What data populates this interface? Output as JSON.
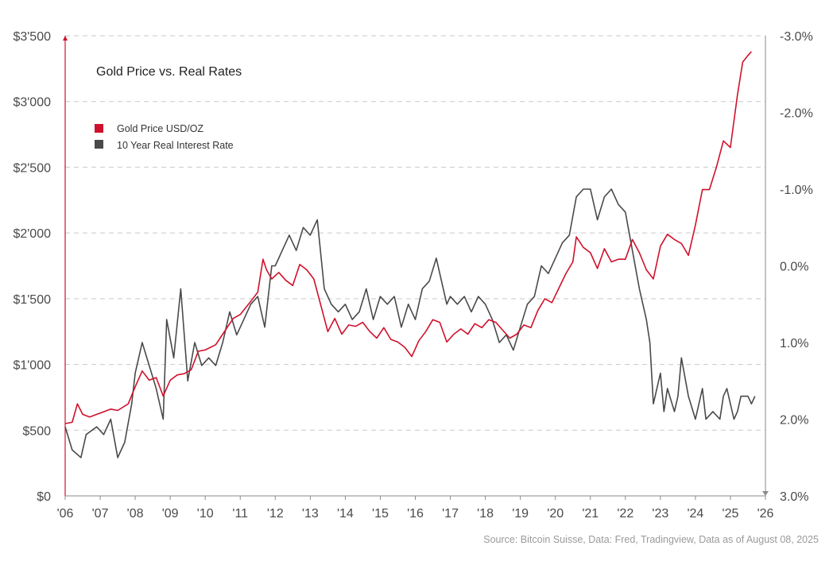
{
  "chart_data": {
    "type": "line",
    "title": "Gold Price vs. Real Rates",
    "source": "Source: Bitcoin Suisse, Data: Fred, Tradingview, Data as of August 08, 2025",
    "x_ticks": [
      "'06",
      "'07",
      "'08",
      "'09",
      "'10",
      "'11",
      "'12",
      "'13",
      "'14",
      "'15",
      "'16",
      "'17",
      "'18",
      "'19",
      "'20",
      "'21",
      "'22",
      "'23",
      "'24",
      "'25",
      "'26"
    ],
    "x_range": [
      2006,
      2026
    ],
    "left_axis": {
      "ticks": [
        "$0",
        "$500",
        "$1'000",
        "$1'500",
        "$2'000",
        "$2'500",
        "$3'000",
        "$3'500"
      ],
      "values": [
        0,
        500,
        1000,
        1500,
        2000,
        2500,
        3000,
        3500
      ],
      "range": [
        0,
        3500
      ]
    },
    "right_axis": {
      "ticks": [
        "-3.0%",
        "-2.0%",
        "-1.0%",
        "0.0%",
        "1.0%",
        "2.0%",
        "3.0%"
      ],
      "values": [
        -3,
        -2,
        -1,
        0,
        1,
        2,
        3
      ],
      "range": [
        -3,
        3
      ],
      "inverted": true
    },
    "grid": true,
    "legend_position": "top-left",
    "series": [
      {
        "name": "Gold Price USD/OZ",
        "color": "#d0112b",
        "axis": "left",
        "points": [
          [
            2006.0,
            550
          ],
          [
            2006.2,
            560
          ],
          [
            2006.35,
            700
          ],
          [
            2006.5,
            620
          ],
          [
            2006.7,
            600
          ],
          [
            2007.0,
            630
          ],
          [
            2007.3,
            660
          ],
          [
            2007.5,
            650
          ],
          [
            2007.8,
            700
          ],
          [
            2008.0,
            830
          ],
          [
            2008.2,
            950
          ],
          [
            2008.4,
            880
          ],
          [
            2008.6,
            900
          ],
          [
            2008.8,
            760
          ],
          [
            2009.0,
            880
          ],
          [
            2009.2,
            920
          ],
          [
            2009.4,
            930
          ],
          [
            2009.6,
            960
          ],
          [
            2009.8,
            1100
          ],
          [
            2010.0,
            1110
          ],
          [
            2010.3,
            1150
          ],
          [
            2010.5,
            1230
          ],
          [
            2010.8,
            1350
          ],
          [
            2011.0,
            1380
          ],
          [
            2011.3,
            1480
          ],
          [
            2011.5,
            1550
          ],
          [
            2011.65,
            1800
          ],
          [
            2011.75,
            1720
          ],
          [
            2011.9,
            1650
          ],
          [
            2012.1,
            1700
          ],
          [
            2012.3,
            1640
          ],
          [
            2012.5,
            1600
          ],
          [
            2012.7,
            1760
          ],
          [
            2012.9,
            1720
          ],
          [
            2013.1,
            1650
          ],
          [
            2013.3,
            1450
          ],
          [
            2013.5,
            1250
          ],
          [
            2013.7,
            1350
          ],
          [
            2013.9,
            1230
          ],
          [
            2014.1,
            1300
          ],
          [
            2014.3,
            1290
          ],
          [
            2014.5,
            1320
          ],
          [
            2014.7,
            1250
          ],
          [
            2014.9,
            1200
          ],
          [
            2015.1,
            1280
          ],
          [
            2015.3,
            1190
          ],
          [
            2015.5,
            1170
          ],
          [
            2015.7,
            1130
          ],
          [
            2015.9,
            1060
          ],
          [
            2016.1,
            1180
          ],
          [
            2016.3,
            1250
          ],
          [
            2016.5,
            1340
          ],
          [
            2016.7,
            1320
          ],
          [
            2016.9,
            1170
          ],
          [
            2017.1,
            1230
          ],
          [
            2017.3,
            1270
          ],
          [
            2017.5,
            1230
          ],
          [
            2017.7,
            1310
          ],
          [
            2017.9,
            1280
          ],
          [
            2018.1,
            1340
          ],
          [
            2018.3,
            1320
          ],
          [
            2018.5,
            1260
          ],
          [
            2018.7,
            1200
          ],
          [
            2018.9,
            1230
          ],
          [
            2019.1,
            1300
          ],
          [
            2019.3,
            1280
          ],
          [
            2019.5,
            1410
          ],
          [
            2019.7,
            1500
          ],
          [
            2019.9,
            1470
          ],
          [
            2020.1,
            1580
          ],
          [
            2020.3,
            1690
          ],
          [
            2020.5,
            1780
          ],
          [
            2020.6,
            1970
          ],
          [
            2020.8,
            1890
          ],
          [
            2021.0,
            1850
          ],
          [
            2021.2,
            1730
          ],
          [
            2021.4,
            1880
          ],
          [
            2021.6,
            1780
          ],
          [
            2021.8,
            1800
          ],
          [
            2022.0,
            1800
          ],
          [
            2022.2,
            1950
          ],
          [
            2022.4,
            1850
          ],
          [
            2022.6,
            1720
          ],
          [
            2022.8,
            1650
          ],
          [
            2023.0,
            1900
          ],
          [
            2023.2,
            1990
          ],
          [
            2023.4,
            1950
          ],
          [
            2023.6,
            1920
          ],
          [
            2023.8,
            1830
          ],
          [
            2024.0,
            2060
          ],
          [
            2024.2,
            2330
          ],
          [
            2024.4,
            2330
          ],
          [
            2024.6,
            2500
          ],
          [
            2024.8,
            2700
          ],
          [
            2025.0,
            2650
          ],
          [
            2025.2,
            3050
          ],
          [
            2025.35,
            3300
          ],
          [
            2025.5,
            3350
          ],
          [
            2025.6,
            3380
          ]
        ]
      },
      {
        "name": "10 Year Real Interest Rate",
        "color": "#4a4a4a",
        "axis": "right",
        "points": [
          [
            2006.0,
            2.1
          ],
          [
            2006.2,
            2.4
          ],
          [
            2006.45,
            2.5
          ],
          [
            2006.6,
            2.2
          ],
          [
            2006.9,
            2.1
          ],
          [
            2007.1,
            2.2
          ],
          [
            2007.3,
            2.0
          ],
          [
            2007.5,
            2.5
          ],
          [
            2007.7,
            2.3
          ],
          [
            2007.9,
            1.8
          ],
          [
            2008.0,
            1.4
          ],
          [
            2008.2,
            1.0
          ],
          [
            2008.4,
            1.3
          ],
          [
            2008.6,
            1.6
          ],
          [
            2008.8,
            2.0
          ],
          [
            2008.9,
            0.7
          ],
          [
            2009.1,
            1.2
          ],
          [
            2009.3,
            0.3
          ],
          [
            2009.5,
            1.5
          ],
          [
            2009.7,
            1.0
          ],
          [
            2009.9,
            1.3
          ],
          [
            2010.1,
            1.2
          ],
          [
            2010.3,
            1.3
          ],
          [
            2010.5,
            1.0
          ],
          [
            2010.7,
            0.6
          ],
          [
            2010.9,
            0.9
          ],
          [
            2011.1,
            0.7
          ],
          [
            2011.3,
            0.5
          ],
          [
            2011.5,
            0.4
          ],
          [
            2011.7,
            0.8
          ],
          [
            2011.9,
            0.0
          ],
          [
            2012.0,
            0.0
          ],
          [
            2012.2,
            -0.2
          ],
          [
            2012.4,
            -0.4
          ],
          [
            2012.6,
            -0.2
          ],
          [
            2012.8,
            -0.5
          ],
          [
            2013.0,
            -0.4
          ],
          [
            2013.2,
            -0.6
          ],
          [
            2013.4,
            0.3
          ],
          [
            2013.6,
            0.5
          ],
          [
            2013.8,
            0.6
          ],
          [
            2014.0,
            0.5
          ],
          [
            2014.2,
            0.7
          ],
          [
            2014.4,
            0.6
          ],
          [
            2014.6,
            0.3
          ],
          [
            2014.8,
            0.7
          ],
          [
            2015.0,
            0.4
          ],
          [
            2015.2,
            0.5
          ],
          [
            2015.4,
            0.4
          ],
          [
            2015.6,
            0.8
          ],
          [
            2015.8,
            0.5
          ],
          [
            2016.0,
            0.7
          ],
          [
            2016.2,
            0.3
          ],
          [
            2016.4,
            0.2
          ],
          [
            2016.6,
            -0.1
          ],
          [
            2016.9,
            0.5
          ],
          [
            2017.0,
            0.4
          ],
          [
            2017.2,
            0.5
          ],
          [
            2017.4,
            0.4
          ],
          [
            2017.6,
            0.6
          ],
          [
            2017.8,
            0.4
          ],
          [
            2018.0,
            0.5
          ],
          [
            2018.2,
            0.7
          ],
          [
            2018.4,
            1.0
          ],
          [
            2018.6,
            0.9
          ],
          [
            2018.8,
            1.1
          ],
          [
            2019.0,
            0.8
          ],
          [
            2019.2,
            0.5
          ],
          [
            2019.4,
            0.4
          ],
          [
            2019.6,
            0.0
          ],
          [
            2019.8,
            0.1
          ],
          [
            2020.0,
            -0.1
          ],
          [
            2020.2,
            -0.3
          ],
          [
            2020.4,
            -0.4
          ],
          [
            2020.6,
            -0.9
          ],
          [
            2020.8,
            -1.0
          ],
          [
            2021.0,
            -1.0
          ],
          [
            2021.2,
            -0.6
          ],
          [
            2021.4,
            -0.9
          ],
          [
            2021.6,
            -1.0
          ],
          [
            2021.8,
            -0.8
          ],
          [
            2022.0,
            -0.7
          ],
          [
            2022.2,
            -0.2
          ],
          [
            2022.4,
            0.3
          ],
          [
            2022.6,
            0.7
          ],
          [
            2022.7,
            1.0
          ],
          [
            2022.8,
            1.8
          ],
          [
            2023.0,
            1.4
          ],
          [
            2023.1,
            1.9
          ],
          [
            2023.2,
            1.6
          ],
          [
            2023.4,
            1.9
          ],
          [
            2023.5,
            1.7
          ],
          [
            2023.6,
            1.2
          ],
          [
            2023.8,
            1.7
          ],
          [
            2024.0,
            2.0
          ],
          [
            2024.1,
            1.8
          ],
          [
            2024.2,
            1.6
          ],
          [
            2024.3,
            2.0
          ],
          [
            2024.5,
            1.9
          ],
          [
            2024.7,
            2.0
          ],
          [
            2024.8,
            1.7
          ],
          [
            2024.9,
            1.6
          ],
          [
            2025.0,
            1.8
          ],
          [
            2025.1,
            2.0
          ],
          [
            2025.2,
            1.9
          ],
          [
            2025.3,
            1.7
          ],
          [
            2025.5,
            1.7
          ],
          [
            2025.6,
            1.8
          ],
          [
            2025.7,
            1.7
          ]
        ]
      }
    ]
  }
}
